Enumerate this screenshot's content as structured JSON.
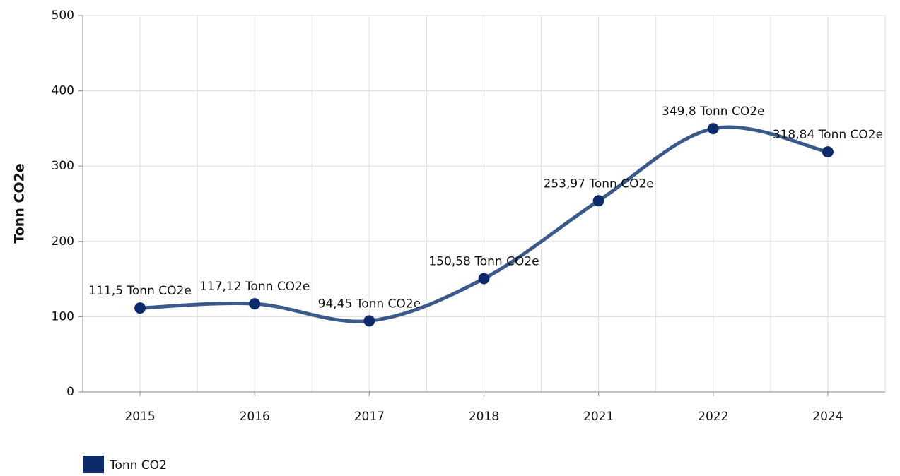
{
  "chart_data": {
    "type": "line",
    "y_label": "Tonn CO2e",
    "categories": [
      "2015",
      "2016",
      "2017",
      "2018",
      "2021",
      "2022",
      "2024"
    ],
    "series": [
      {
        "name": "Tonn CO2",
        "color": "#3a5a8c",
        "marker_color": "#0d2b6b",
        "values": [
          111.5,
          117.12,
          94.45,
          150.58,
          253.97,
          349.8,
          318.84
        ],
        "value_labels": [
          "111,5 Tonn CO2e",
          "117,12 Tonn CO2e",
          "94,45 Tonn CO2e",
          "150,58 Tonn CO2e",
          "253,97 Tonn CO2e",
          "349,8 Tonn CO2e",
          "318,84 Tonn CO2e"
        ]
      }
    ],
    "ylim": [
      0,
      500
    ],
    "yticks": [
      0,
      100,
      200,
      300,
      400,
      500
    ],
    "grid": true,
    "smooth": true,
    "legend": "bottom-left"
  }
}
